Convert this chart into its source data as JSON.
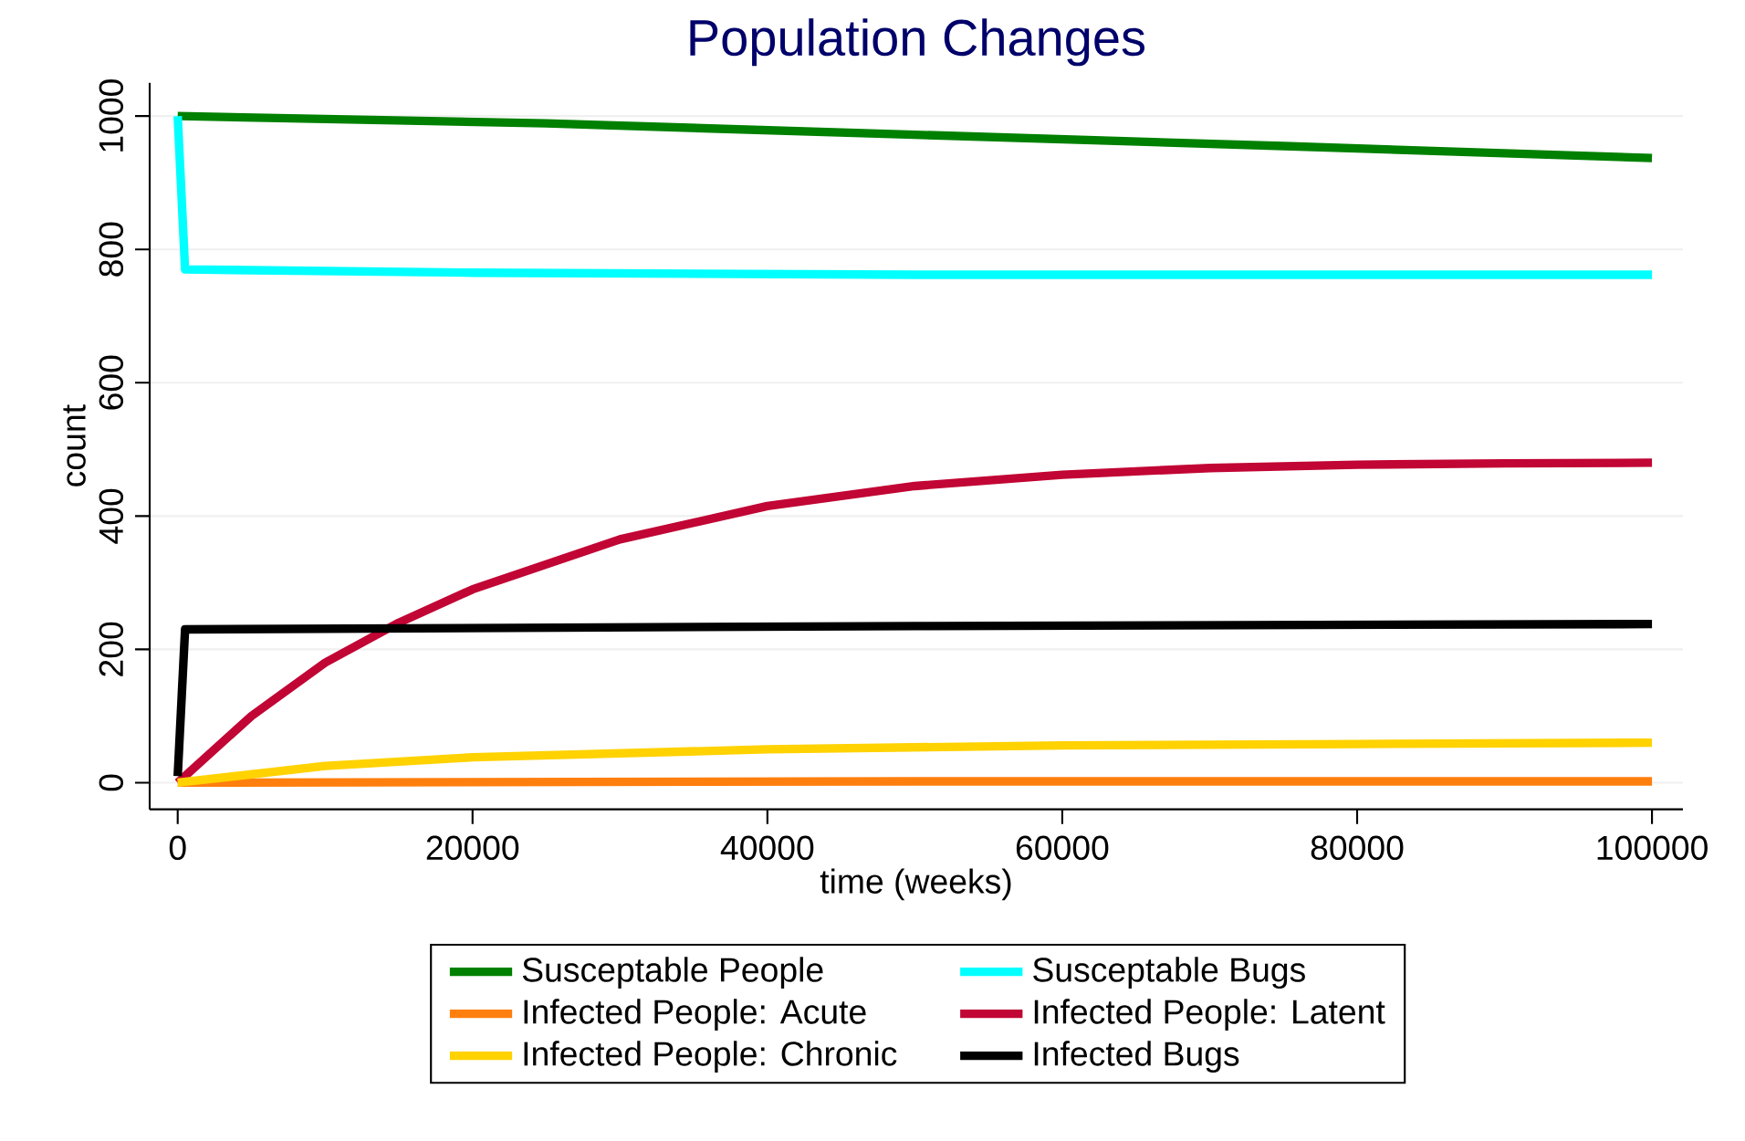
{
  "chart_data": {
    "type": "line",
    "title": "Population Changes",
    "xlabel": "time (weeks)",
    "ylabel": "count",
    "xlim": [
      -1900,
      102100
    ],
    "ylim": [
      -40,
      1050
    ],
    "xticks": [
      0,
      20000,
      40000,
      60000,
      80000,
      100000
    ],
    "yticks": [
      0,
      200,
      400,
      600,
      800,
      1000
    ],
    "grid": "y",
    "legend": "bottom",
    "marker": "none",
    "line_style": "solid",
    "series": [
      {
        "name": "Susceptable People",
        "color": "#008000",
        "x": [
          0,
          25000,
          50000,
          75000,
          100000
        ],
        "values": [
          1000,
          989,
          972,
          955,
          937
        ]
      },
      {
        "name": "Susceptable Bugs",
        "color": "#00ffff",
        "x": [
          0,
          500,
          20000,
          50000,
          100000
        ],
        "values": [
          1000,
          770,
          765,
          762,
          762
        ]
      },
      {
        "name": "Infected People: Acute",
        "color": "#ff7f0e",
        "x": [
          0,
          50000,
          100000
        ],
        "values": [
          0,
          2,
          2
        ]
      },
      {
        "name": "Infected People: Latent",
        "color": "#c10534",
        "x": [
          0,
          5000,
          10000,
          15000,
          20000,
          30000,
          40000,
          50000,
          60000,
          70000,
          80000,
          90000,
          100000
        ],
        "values": [
          0,
          100,
          180,
          240,
          290,
          365,
          415,
          445,
          462,
          472,
          477,
          479,
          480
        ]
      },
      {
        "name": "Infected People: Chronic",
        "color": "#ffd200",
        "x": [
          0,
          10000,
          20000,
          40000,
          60000,
          80000,
          100000
        ],
        "values": [
          0,
          25,
          38,
          50,
          56,
          58,
          60
        ]
      },
      {
        "name": "Infected Bugs",
        "color": "#000000",
        "x": [
          0,
          500,
          50000,
          100000
        ],
        "values": [
          10,
          230,
          235,
          238
        ]
      }
    ]
  }
}
